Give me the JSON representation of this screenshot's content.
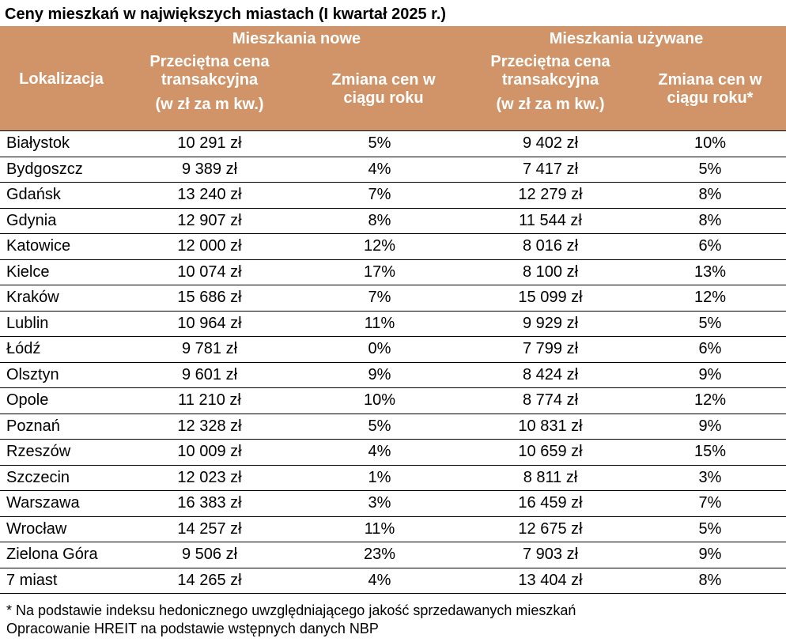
{
  "title": "Ceny mieszkań w największych miastach (I kwartał 2025 r.)",
  "header": {
    "location_label": "Lokalizacja",
    "group_new": "Mieszkania nowe",
    "group_used": "Mieszkania używane",
    "new_price_line1": "Przeciętna cena",
    "new_price_line2": "transakcyjna",
    "new_price_unit": "(w zł za m kw.)",
    "new_change_line1": "Zmiana cen w",
    "new_change_line2": "ciągu roku",
    "used_price_line1": "Przeciętna cena",
    "used_price_line2": "transakcyjna",
    "used_price_unit": "(w zł za m kw.)",
    "used_change_line1": "Zmiana cen w",
    "used_change_line2": "ciągu roku*"
  },
  "rows": [
    {
      "city": "Białystok",
      "new_price": "10 291 zł",
      "new_change": "5%",
      "used_price": "9 402 zł",
      "used_change": "10%"
    },
    {
      "city": "Bydgoszcz",
      "new_price": "9 389 zł",
      "new_change": "4%",
      "used_price": "7 417 zł",
      "used_change": "5%"
    },
    {
      "city": "Gdańsk",
      "new_price": "13 240 zł",
      "new_change": "7%",
      "used_price": "12 279 zł",
      "used_change": "8%"
    },
    {
      "city": "Gdynia",
      "new_price": "12 907 zł",
      "new_change": "8%",
      "used_price": "11 544 zł",
      "used_change": "8%"
    },
    {
      "city": "Katowice",
      "new_price": "12 000 zł",
      "new_change": "12%",
      "used_price": "8 016 zł",
      "used_change": "6%"
    },
    {
      "city": "Kielce",
      "new_price": "10 074 zł",
      "new_change": "17%",
      "used_price": "8 100 zł",
      "used_change": "13%"
    },
    {
      "city": "Kraków",
      "new_price": "15 686 zł",
      "new_change": "7%",
      "used_price": "15 099 zł",
      "used_change": "12%"
    },
    {
      "city": "Lublin",
      "new_price": "10 964 zł",
      "new_change": "11%",
      "used_price": "9 929 zł",
      "used_change": "5%"
    },
    {
      "city": "Łódź",
      "new_price": "9 781 zł",
      "new_change": "0%",
      "used_price": "7 799 zł",
      "used_change": "6%"
    },
    {
      "city": "Olsztyn",
      "new_price": "9 601 zł",
      "new_change": "9%",
      "used_price": "8 424 zł",
      "used_change": "9%"
    },
    {
      "city": "Opole",
      "new_price": "11 210 zł",
      "new_change": "10%",
      "used_price": "8 774 zł",
      "used_change": "12%"
    },
    {
      "city": "Poznań",
      "new_price": "12 328 zł",
      "new_change": "5%",
      "used_price": "10 831 zł",
      "used_change": "9%"
    },
    {
      "city": "Rzeszów",
      "new_price": "10 009 zł",
      "new_change": "4%",
      "used_price": "10 659 zł",
      "used_change": "15%"
    },
    {
      "city": "Szczecin",
      "new_price": "12 023 zł",
      "new_change": "1%",
      "used_price": "8 811 zł",
      "used_change": "3%"
    },
    {
      "city": "Warszawa",
      "new_price": "16 383 zł",
      "new_change": "3%",
      "used_price": "16 459 zł",
      "used_change": "7%"
    },
    {
      "city": "Wrocław",
      "new_price": "14 257 zł",
      "new_change": "11%",
      "used_price": "12 675 zł",
      "used_change": "5%"
    },
    {
      "city": "Zielona Góra",
      "new_price": "9 506 zł",
      "new_change": "23%",
      "used_price": "7 903 zł",
      "used_change": "9%"
    },
    {
      "city": "7 miast",
      "new_price": "14 265 zł",
      "new_change": "4%",
      "used_price": "13 404 zł",
      "used_change": "8%"
    }
  ],
  "footnotes": {
    "note": "* Na podstawie indeksu hedonicznego uwzględniającego jakość sprzedawanych mieszkań",
    "source": "Opracowanie HREIT na podstawie wstępnych danych NBP"
  },
  "colors": {
    "header_background": "#d19468",
    "header_text": "#ffffff"
  }
}
